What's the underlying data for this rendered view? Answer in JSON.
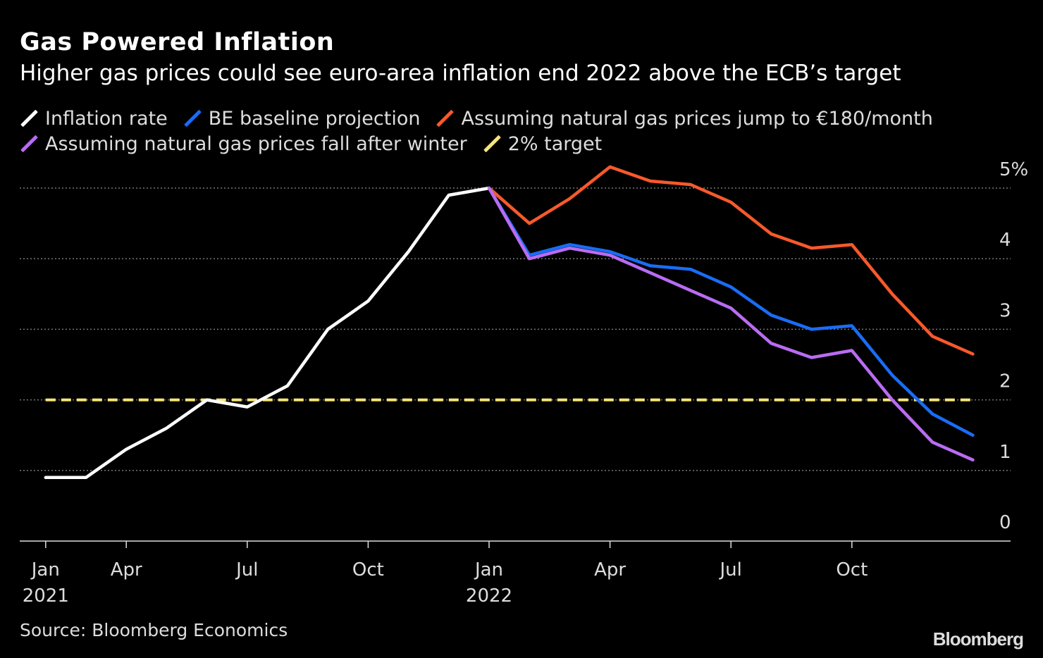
{
  "header": {
    "title": "Gas Powered Inflation",
    "subtitle": "Higher gas prices could see euro-area inflation end 2022 above the ECB’s target"
  },
  "footer": {
    "source": "Source: Bloomberg Economics",
    "logo": "Bloomberg"
  },
  "chart_data": {
    "type": "line",
    "title": "Gas Powered Inflation",
    "subtitle": "Higher gas prices could see euro-area inflation end 2022 above the ECB’s target",
    "ylim": [
      0,
      5
    ],
    "y_ticks": [
      {
        "value": 0,
        "label": "0"
      },
      {
        "value": 1,
        "label": "1"
      },
      {
        "value": 2,
        "label": "2"
      },
      {
        "value": 3,
        "label": "3"
      },
      {
        "value": 4,
        "label": "4"
      },
      {
        "value": 5,
        "label": "5%"
      }
    ],
    "x_ticks": [
      {
        "date": "2021-01",
        "label": "Jan",
        "year": "2021"
      },
      {
        "date": "2021-04",
        "label": "Apr",
        "year": ""
      },
      {
        "date": "2021-07",
        "label": "Jul",
        "year": ""
      },
      {
        "date": "2021-10",
        "label": "Oct",
        "year": ""
      },
      {
        "date": "2022-01",
        "label": "Jan",
        "year": "2022"
      },
      {
        "date": "2022-04",
        "label": "Apr",
        "year": ""
      },
      {
        "date": "2022-07",
        "label": "Jul",
        "year": ""
      },
      {
        "date": "2022-10",
        "label": "Oct",
        "year": ""
      }
    ],
    "grid": "horizontal dotted",
    "legend_position": "top-left",
    "series": [
      {
        "name": "Inflation rate",
        "color": "#ffffff",
        "start": "2021-02",
        "values": [
          0.9,
          0.9,
          1.3,
          1.6,
          2.0,
          1.9,
          2.2,
          3.0,
          3.4,
          4.1,
          4.9,
          5.0
        ]
      },
      {
        "name": "BE baseline projection",
        "color": "#1a6cf5",
        "start": "2022-01",
        "values": [
          5.0,
          4.05,
          4.2,
          4.1,
          3.9,
          3.85,
          3.6,
          3.2,
          3.0,
          3.05,
          2.35,
          1.8,
          1.5
        ]
      },
      {
        "name": "Assuming natural gas prices jump to €180/month",
        "color": "#f7592c",
        "start": "2022-01",
        "values": [
          5.0,
          4.5,
          4.85,
          5.3,
          5.1,
          5.05,
          4.8,
          4.35,
          4.15,
          4.2,
          3.5,
          2.9,
          2.65
        ]
      },
      {
        "name": "Assuming natural gas prices fall after winter",
        "color": "#b96cf2",
        "start": "2022-01",
        "values": [
          5.0,
          4.0,
          4.15,
          4.05,
          3.8,
          3.55,
          3.3,
          2.8,
          2.6,
          2.7,
          2.0,
          1.4,
          1.15
        ]
      },
      {
        "name": "2% target",
        "color": "#f9e57c",
        "start": "2021-02",
        "dashed": true,
        "values": [
          2,
          2,
          2,
          2,
          2,
          2,
          2,
          2,
          2,
          2,
          2,
          2,
          2,
          2,
          2,
          2,
          2,
          2,
          2,
          2,
          2,
          2,
          2,
          2
        ]
      }
    ]
  }
}
